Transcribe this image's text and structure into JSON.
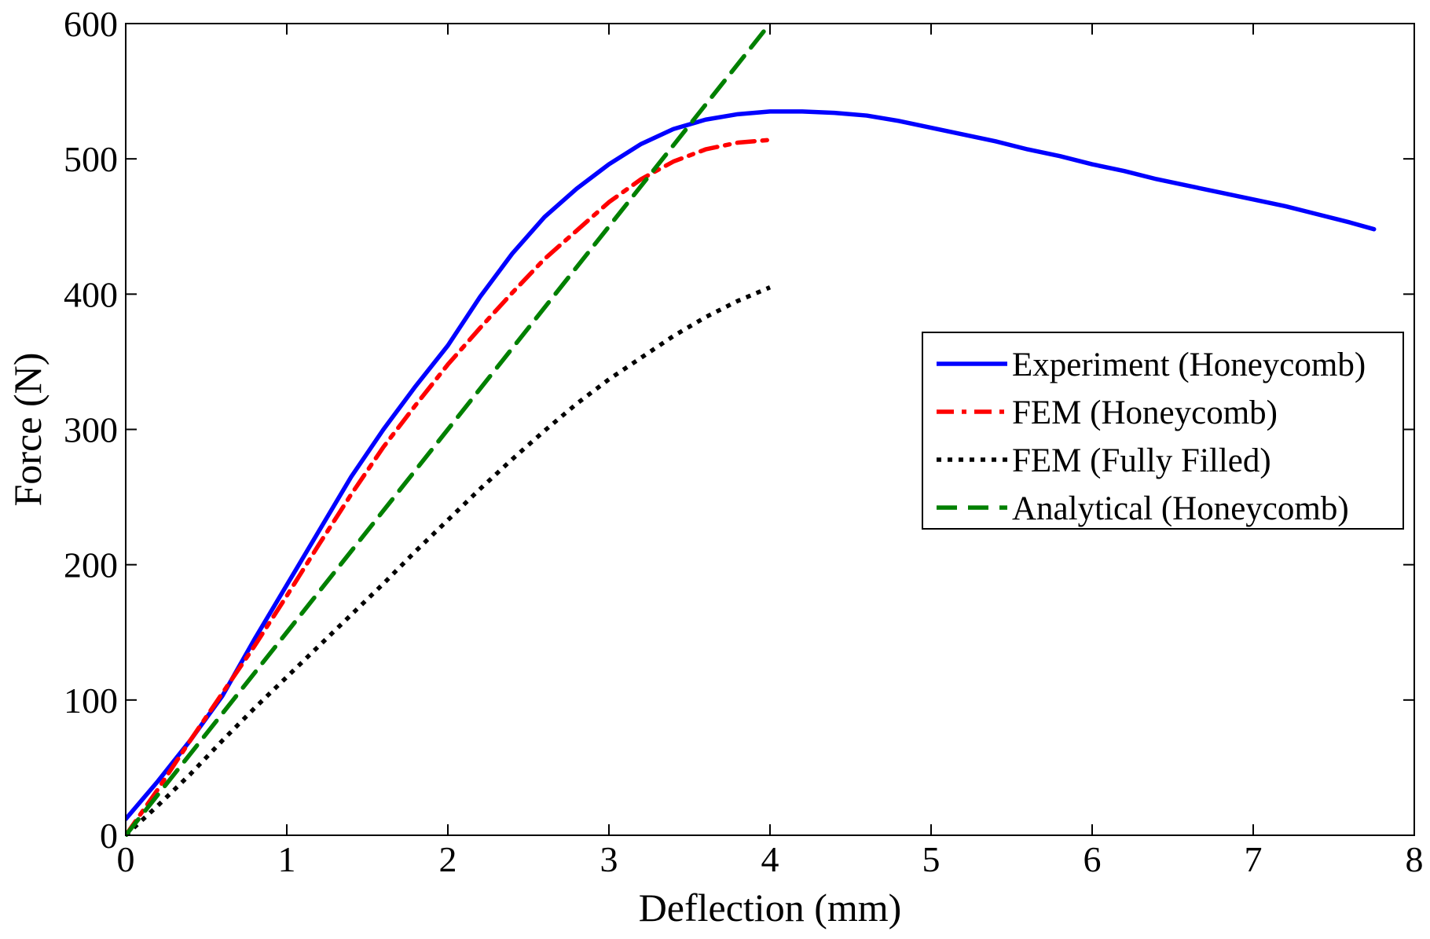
{
  "chart_data": {
    "type": "line",
    "title": "",
    "xlabel": "Deflection (mm)",
    "ylabel": "Force (N)",
    "xlim": [
      0,
      8
    ],
    "ylim": [
      0,
      600
    ],
    "xticks": [
      0,
      1,
      2,
      3,
      4,
      5,
      6,
      7,
      8
    ],
    "yticks": [
      0,
      100,
      200,
      300,
      400,
      500,
      600
    ],
    "grid": false,
    "legend_position": "right",
    "series": [
      {
        "name": "Experiment (Honeycomb)",
        "color": "#0000ff",
        "style": "solid",
        "x": [
          0,
          0.2,
          0.4,
          0.6,
          0.8,
          1.0,
          1.2,
          1.4,
          1.6,
          1.8,
          2.0,
          2.2,
          2.4,
          2.6,
          2.8,
          3.0,
          3.2,
          3.4,
          3.6,
          3.8,
          4.0,
          4.2,
          4.4,
          4.6,
          4.8,
          5.0,
          5.2,
          5.4,
          5.6,
          5.8,
          6.0,
          6.2,
          6.4,
          6.6,
          6.8,
          7.0,
          7.2,
          7.4,
          7.6,
          7.75
        ],
        "y": [
          12,
          40,
          70,
          103,
          145,
          185,
          225,
          265,
          300,
          332,
          362,
          398,
          430,
          457,
          478,
          496,
          511,
          522,
          529,
          533,
          535,
          535,
          534,
          532,
          528,
          523,
          518,
          513,
          507,
          502,
          496,
          491,
          485,
          480,
          475,
          470,
          465,
          459,
          453,
          448
        ]
      },
      {
        "name": "FEM (Honeycomb)",
        "color": "#ff0000",
        "style": "dashdot",
        "x": [
          0,
          0.2,
          0.4,
          0.6,
          0.8,
          1.0,
          1.2,
          1.4,
          1.6,
          1.8,
          2.0,
          2.2,
          2.4,
          2.6,
          2.8,
          3.0,
          3.2,
          3.4,
          3.6,
          3.8,
          4.0
        ],
        "y": [
          0,
          34,
          70,
          105,
          140,
          177,
          215,
          252,
          287,
          318,
          348,
          375,
          401,
          426,
          447,
          468,
          485,
          498,
          507,
          512,
          514
        ]
      },
      {
        "name": "FEM (Fully Filled)",
        "color": "#000000",
        "style": "dotted",
        "x": [
          0,
          0.2,
          0.4,
          0.6,
          0.8,
          1.0,
          1.2,
          1.4,
          1.6,
          1.8,
          2.0,
          2.2,
          2.4,
          2.6,
          2.8,
          3.0,
          3.2,
          3.4,
          3.6,
          3.8,
          4.0
        ],
        "y": [
          0,
          22,
          45,
          70,
          94,
          117,
          140,
          163,
          186,
          210,
          233,
          256,
          278,
          299,
          319,
          337,
          353,
          369,
          383,
          395,
          405
        ]
      },
      {
        "name": "Analytical (Honeycomb)",
        "color": "#008000",
        "style": "dashed",
        "x": [
          0,
          4.0
        ],
        "y": [
          0,
          600
        ]
      }
    ]
  }
}
